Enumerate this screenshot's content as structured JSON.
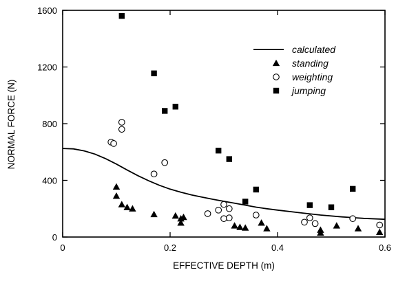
{
  "chart_data": {
    "type": "scatter",
    "xlabel": "EFFECTIVE DEPTH (m)",
    "ylabel": "NORMAL FORCE (N)",
    "xlim": [
      0,
      0.6
    ],
    "ylim": [
      0,
      1600
    ],
    "xticks": [
      "0",
      "0.2",
      "0.4",
      "0.6"
    ],
    "yticks": [
      "0",
      "400",
      "800",
      "1200",
      "1600"
    ],
    "legend_position": "top-right",
    "grid": false,
    "series": [
      {
        "name": "calculated",
        "kind": "line",
        "points": [
          [
            0,
            625
          ],
          [
            0.02,
            622
          ],
          [
            0.04,
            608
          ],
          [
            0.06,
            585
          ],
          [
            0.08,
            553
          ],
          [
            0.1,
            515
          ],
          [
            0.12,
            473
          ],
          [
            0.14,
            433
          ],
          [
            0.16,
            397
          ],
          [
            0.18,
            365
          ],
          [
            0.2,
            338
          ],
          [
            0.22,
            316
          ],
          [
            0.24,
            297
          ],
          [
            0.26,
            281
          ],
          [
            0.28,
            266
          ],
          [
            0.3,
            252
          ],
          [
            0.32,
            239
          ],
          [
            0.34,
            225
          ],
          [
            0.36,
            211
          ],
          [
            0.38,
            200
          ],
          [
            0.4,
            190
          ],
          [
            0.44,
            172
          ],
          [
            0.48,
            155
          ],
          [
            0.52,
            142
          ],
          [
            0.56,
            132
          ],
          [
            0.6,
            125
          ]
        ]
      },
      {
        "name": "standing",
        "kind": "scatter",
        "marker": "triangle",
        "points": [
          [
            0.1,
            355
          ],
          [
            0.1,
            290
          ],
          [
            0.11,
            230
          ],
          [
            0.12,
            210
          ],
          [
            0.13,
            200
          ],
          [
            0.17,
            160
          ],
          [
            0.21,
            150
          ],
          [
            0.22,
            130
          ],
          [
            0.22,
            100
          ],
          [
            0.225,
            140
          ],
          [
            0.32,
            80
          ],
          [
            0.33,
            70
          ],
          [
            0.34,
            65
          ],
          [
            0.37,
            100
          ],
          [
            0.38,
            60
          ],
          [
            0.48,
            50
          ],
          [
            0.48,
            30
          ],
          [
            0.51,
            80
          ],
          [
            0.55,
            60
          ],
          [
            0.59,
            35
          ]
        ]
      },
      {
        "name": "weighting",
        "kind": "scatter",
        "marker": "circle",
        "points": [
          [
            0.09,
            670
          ],
          [
            0.095,
            660
          ],
          [
            0.11,
            810
          ],
          [
            0.11,
            760
          ],
          [
            0.17,
            445
          ],
          [
            0.19,
            525
          ],
          [
            0.27,
            165
          ],
          [
            0.29,
            190
          ],
          [
            0.3,
            230
          ],
          [
            0.3,
            130
          ],
          [
            0.31,
            200
          ],
          [
            0.31,
            135
          ],
          [
            0.36,
            155
          ],
          [
            0.45,
            105
          ],
          [
            0.46,
            135
          ],
          [
            0.47,
            95
          ],
          [
            0.54,
            130
          ],
          [
            0.59,
            85
          ]
        ]
      },
      {
        "name": "jumping",
        "kind": "scatter",
        "marker": "square",
        "points": [
          [
            0.11,
            1560
          ],
          [
            0.17,
            1155
          ],
          [
            0.19,
            890
          ],
          [
            0.21,
            920
          ],
          [
            0.29,
            610
          ],
          [
            0.31,
            550
          ],
          [
            0.34,
            250
          ],
          [
            0.36,
            335
          ],
          [
            0.46,
            225
          ],
          [
            0.5,
            210
          ],
          [
            0.54,
            340
          ]
        ]
      }
    ]
  }
}
